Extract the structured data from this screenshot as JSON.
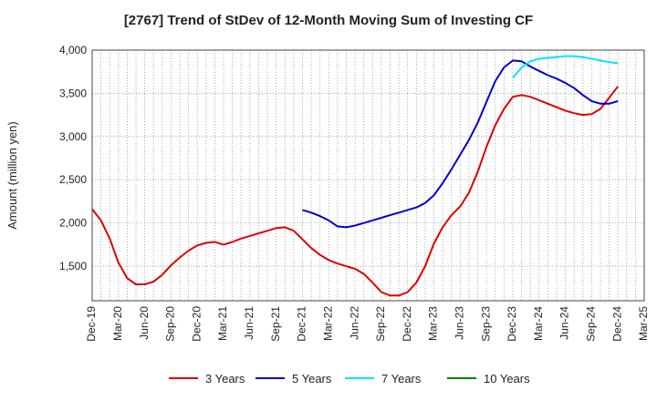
{
  "chart_data": {
    "type": "line",
    "title": "[2767]  Trend of StDev of 12-Month Moving Sum of Investing CF",
    "ylabel": "Amount (million yen)",
    "xlabel": "",
    "ylim": [
      1100,
      4000
    ],
    "yticks": [
      1500,
      2000,
      2500,
      3000,
      3500,
      4000
    ],
    "ytick_labels": [
      "1,500",
      "2,000",
      "2,500",
      "3,000",
      "3,500",
      "4,000"
    ],
    "xtick_labels": [
      "Dec-19",
      "Mar-20",
      "Jun-20",
      "Sep-20",
      "Dec-20",
      "Mar-21",
      "Jun-21",
      "Sep-21",
      "Dec-21",
      "Mar-22",
      "Jun-22",
      "Sep-22",
      "Dec-22",
      "Mar-23",
      "Jun-23",
      "Sep-23",
      "Dec-23",
      "Mar-24",
      "Jun-24",
      "Sep-24",
      "Dec-24",
      "Mar-25"
    ],
    "grid": true,
    "legend_position": "bottom",
    "series": [
      {
        "name": "3 Years",
        "color": "#dd0000",
        "start_index": 0,
        "values": [
          2160,
          2030,
          1820,
          1540,
          1360,
          1290,
          1290,
          1320,
          1400,
          1510,
          1600,
          1680,
          1740,
          1770,
          1780,
          1750,
          1780,
          1820,
          1850,
          1880,
          1910,
          1940,
          1950,
          1910,
          1810,
          1710,
          1630,
          1570,
          1530,
          1500,
          1470,
          1410,
          1310,
          1200,
          1160,
          1160,
          1200,
          1310,
          1500,
          1760,
          1950,
          2090,
          2190,
          2350,
          2590,
          2880,
          3130,
          3320,
          3460,
          3480,
          3460,
          3420,
          3380,
          3340,
          3300,
          3270,
          3250,
          3260,
          3320,
          3450,
          3580
        ]
      },
      {
        "name": "5 Years",
        "color": "#0000cc",
        "start_index": 24,
        "values": [
          2150,
          2120,
          2080,
          2030,
          1960,
          1950,
          1970,
          2000,
          2030,
          2060,
          2090,
          2120,
          2150,
          2180,
          2230,
          2320,
          2460,
          2620,
          2790,
          2960,
          3160,
          3400,
          3640,
          3800,
          3880,
          3870,
          3810,
          3760,
          3710,
          3670,
          3620,
          3560,
          3480,
          3410,
          3380,
          3380,
          3410
        ]
      },
      {
        "name": "7 Years",
        "color": "#00e5ff",
        "start_index": 48,
        "values": [
          3680,
          3800,
          3870,
          3900,
          3910,
          3920,
          3930,
          3930,
          3920,
          3900,
          3880,
          3860,
          3850
        ]
      },
      {
        "name": "10 Years",
        "color": "#008000",
        "start_index": 0,
        "values": []
      }
    ]
  }
}
